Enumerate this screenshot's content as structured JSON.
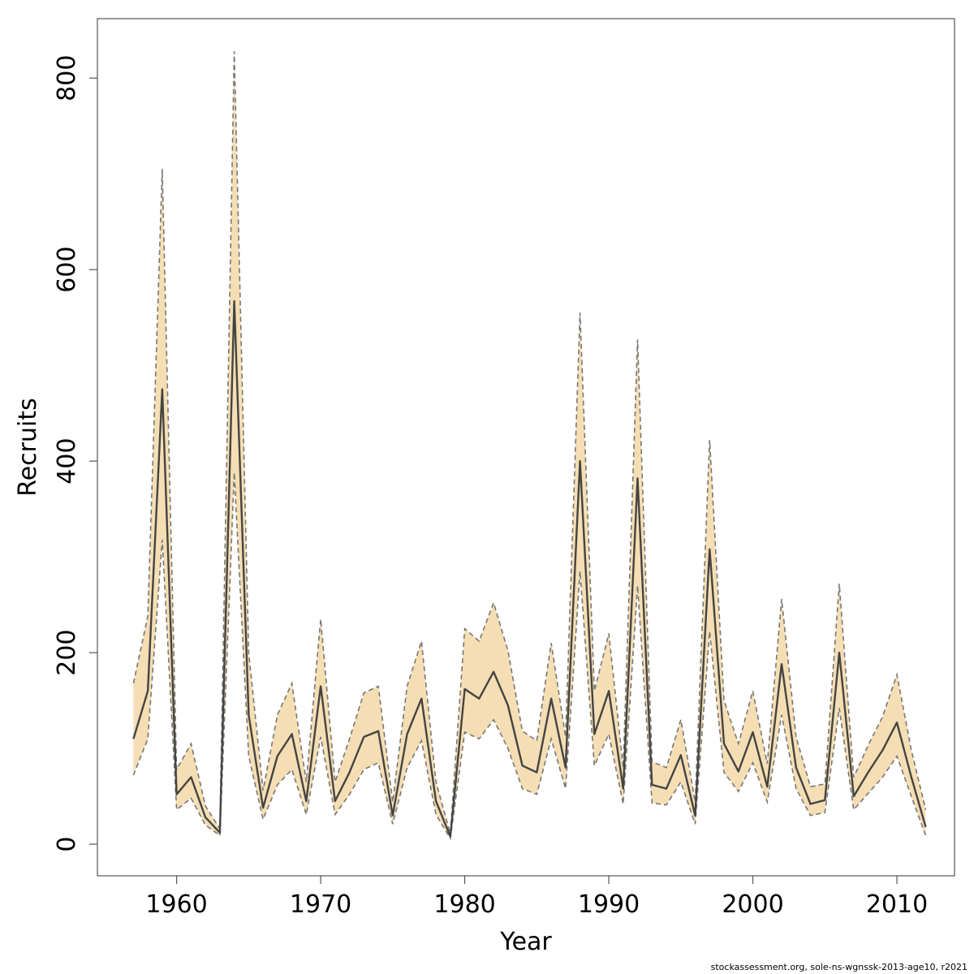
{
  "colors": {
    "band": "#f5deb3",
    "line": "#444444",
    "bound": "#777777",
    "frame": "#555555"
  },
  "credit": "stockassessment.org, sole-ns-wgnssk-2013-age10, r2021",
  "chart_data": {
    "type": "line",
    "xlabel": "Year",
    "ylabel": "Recruits",
    "xlim": [
      1954.5,
      2014
    ],
    "ylim": [
      -33,
      862
    ],
    "xticks": [
      1960,
      1970,
      1980,
      1990,
      2000,
      2010
    ],
    "yticks": [
      0,
      200,
      400,
      600,
      800
    ],
    "grid": false,
    "legend": "none",
    "x": [
      1957,
      1958,
      1959,
      1960,
      1961,
      1962,
      1963,
      1964,
      1965,
      1966,
      1967,
      1968,
      1969,
      1970,
      1971,
      1972,
      1973,
      1974,
      1975,
      1976,
      1977,
      1978,
      1979,
      1980,
      1981,
      1982,
      1983,
      1984,
      1985,
      1986,
      1987,
      1988,
      1989,
      1990,
      1991,
      1992,
      1993,
      1994,
      1995,
      1996,
      1997,
      1998,
      1999,
      2000,
      2001,
      2002,
      2003,
      2004,
      2005,
      2006,
      2007,
      2008,
      2009,
      2010,
      2011,
      2012
    ],
    "series": [
      {
        "role": "estimate",
        "values": [
          110,
          160,
          475,
          52,
          70,
          28,
          12,
          567,
          135,
          38,
          92,
          115,
          45,
          165,
          45,
          75,
          112,
          118,
          30,
          115,
          152,
          45,
          8,
          162,
          152,
          180,
          145,
          82,
          75,
          152,
          80,
          400,
          115,
          160,
          58,
          382,
          62,
          58,
          93,
          30,
          308,
          105,
          76,
          117,
          60,
          188,
          80,
          42,
          46,
          200,
          50,
          75,
          98,
          127,
          70,
          18
        ]
      },
      {
        "role": "lower",
        "values": [
          72,
          110,
          318,
          36,
          48,
          20,
          9,
          388,
          92,
          26,
          62,
          78,
          31,
          112,
          31,
          52,
          78,
          85,
          21,
          80,
          108,
          31,
          6,
          117,
          110,
          130,
          100,
          58,
          52,
          110,
          58,
          285,
          82,
          115,
          42,
          270,
          43,
          41,
          65,
          21,
          222,
          75,
          55,
          85,
          44,
          135,
          58,
          30,
          33,
          142,
          36,
          53,
          70,
          92,
          50,
          9
        ]
      },
      {
        "role": "upper",
        "values": [
          168,
          238,
          705,
          78,
          105,
          40,
          16,
          828,
          200,
          56,
          135,
          168,
          65,
          235,
          65,
          110,
          158,
          165,
          44,
          165,
          212,
          65,
          11,
          225,
          212,
          252,
          202,
          118,
          108,
          210,
          112,
          555,
          160,
          220,
          80,
          527,
          86,
          80,
          130,
          44,
          422,
          150,
          105,
          160,
          84,
          256,
          112,
          60,
          63,
          272,
          70,
          103,
          133,
          177,
          98,
          36
        ]
      }
    ]
  }
}
